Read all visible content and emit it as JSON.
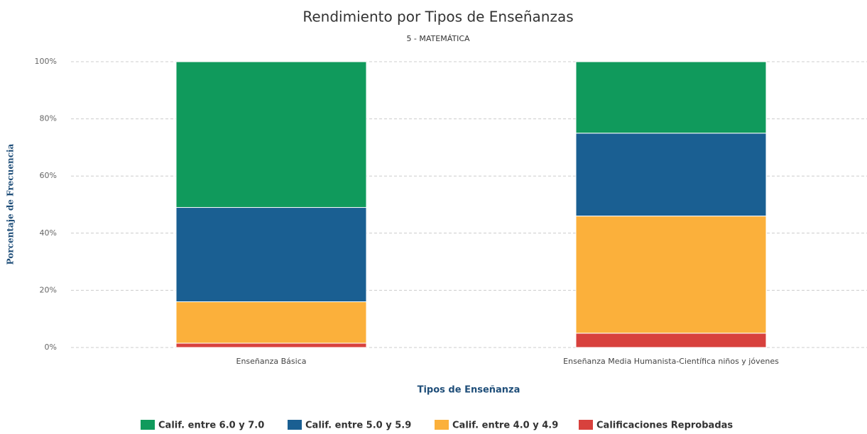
{
  "chart_data": {
    "type": "stacked_bar",
    "title": "Rendimiento por Tipos de Enseñanzas",
    "subtitle": "5 - MATEMÁTICA",
    "x_label": "Tipos de Enseñanza",
    "y_label": "Porcentaje de Frecuencia",
    "categories": [
      "Enseñanza Básica",
      "Enseñanza Media Humanista-Científica niños y jóvenes"
    ],
    "series": [
      {
        "name": "Calif. entre 6.0 y 7.0",
        "color": "#109a5c",
        "values": [
          51,
          25
        ]
      },
      {
        "name": "Calif. entre 5.0 y 5.9",
        "color": "#1a5f92",
        "values": [
          33,
          29
        ]
      },
      {
        "name": "Calif. entre 4.0 y 4.9",
        "color": "#fbb03b",
        "values": [
          14.5,
          41
        ]
      },
      {
        "name": "Calificaciones Reprobadas",
        "color": "#d8413d",
        "values": [
          1.5,
          5
        ]
      }
    ],
    "ylim": [
      0,
      100
    ],
    "yticks": [
      {
        "value": 0,
        "label": "0%"
      },
      {
        "value": 20,
        "label": "20%"
      },
      {
        "value": 40,
        "label": "40%"
      },
      {
        "value": 60,
        "label": "60%"
      },
      {
        "value": 80,
        "label": "80%"
      },
      {
        "value": 100,
        "label": "100%"
      }
    ],
    "grid": true,
    "legend": "bottom"
  }
}
